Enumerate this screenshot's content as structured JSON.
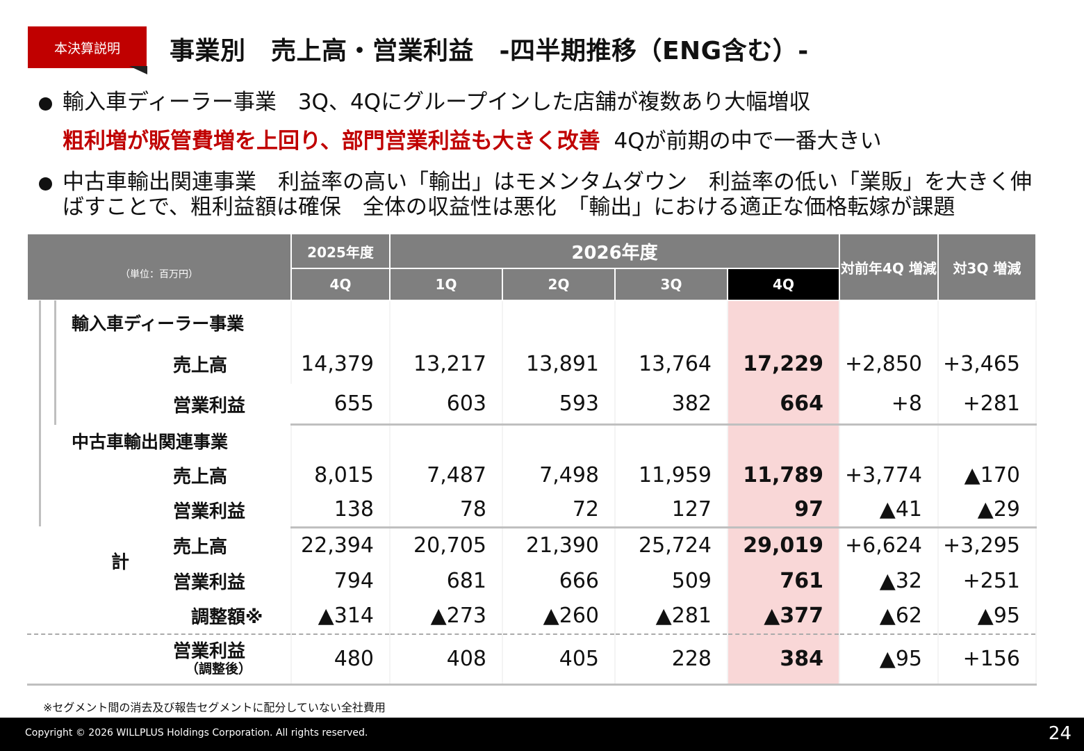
{
  "header": {
    "tag": "本決算説明",
    "title": "事業別　売上高・営業利益　-四半期推移（ENG含む）-"
  },
  "bullets": {
    "b1_line1": "輸入車ディーラー事業　3Q、4Qにグループインした店舗が複数あり大幅増収",
    "b1_red": "粗利増が販管費増を上回り、部門営業利益も大きく改善",
    "b1_rest": "4Qが前期の中で一番大きい",
    "b2_line1": "中古車輸出関連事業　利益率の高い「輸出」はモメンタムダウン　利益率の低い「業販」を大きく伸",
    "b2_line2": "ばすことで、粗利益額は確保　全体の収益性は悪化　「輸出」における適正な価格転嫁が課題"
  },
  "table": {
    "unit": "（単位：百万円）",
    "fy2025": "2025年度",
    "fy2026": "2026年度",
    "yoy": "対前年4Q 増減",
    "qoq": "対3Q 増減",
    "quarters": [
      "4Q",
      "1Q",
      "2Q",
      "3Q",
      "4Q"
    ],
    "seg1": "輸入車ディーラー事業",
    "seg2": "中古車輸出関連事業",
    "total": "計",
    "labels": {
      "sales": "売上高",
      "op": "営業利益",
      "adj": "調整額※",
      "op_adj": "営業利益",
      "op_adj_sub": "（調整後）"
    },
    "rows": {
      "s1_sales": [
        "14,379",
        "13,217",
        "13,891",
        "13,764",
        "17,229",
        "+2,850",
        "+3,465"
      ],
      "s1_op": [
        "655",
        "603",
        "593",
        "382",
        "664",
        "+8",
        "+281"
      ],
      "s2_sales": [
        "8,015",
        "7,487",
        "7,498",
        "11,959",
        "11,789",
        "+3,774",
        "▲170"
      ],
      "s2_op": [
        "138",
        "78",
        "72",
        "127",
        "97",
        "▲41",
        "▲29"
      ],
      "t_sales": [
        "22,394",
        "20,705",
        "21,390",
        "25,724",
        "29,019",
        "+6,624",
        "+3,295"
      ],
      "t_op": [
        "794",
        "681",
        "666",
        "509",
        "761",
        "▲32",
        "+251"
      ],
      "t_adj": [
        "▲314",
        "▲273",
        "▲260",
        "▲281",
        "▲377",
        "▲62",
        "▲95"
      ],
      "t_op_adj": [
        "480",
        "408",
        "405",
        "228",
        "384",
        "▲95",
        "+156"
      ]
    }
  },
  "footnote": "※セグメント間の消去及び報告セグメントに配分していない全社費用",
  "footer": {
    "copyright": "Copyright © 2026 WILLPLUS Holdings Corporation. All rights reserved.",
    "page": "24"
  },
  "colors": {
    "accent": "#c00000",
    "header_gray": "#7f7f7f",
    "highlight": "#f9d7d7"
  }
}
